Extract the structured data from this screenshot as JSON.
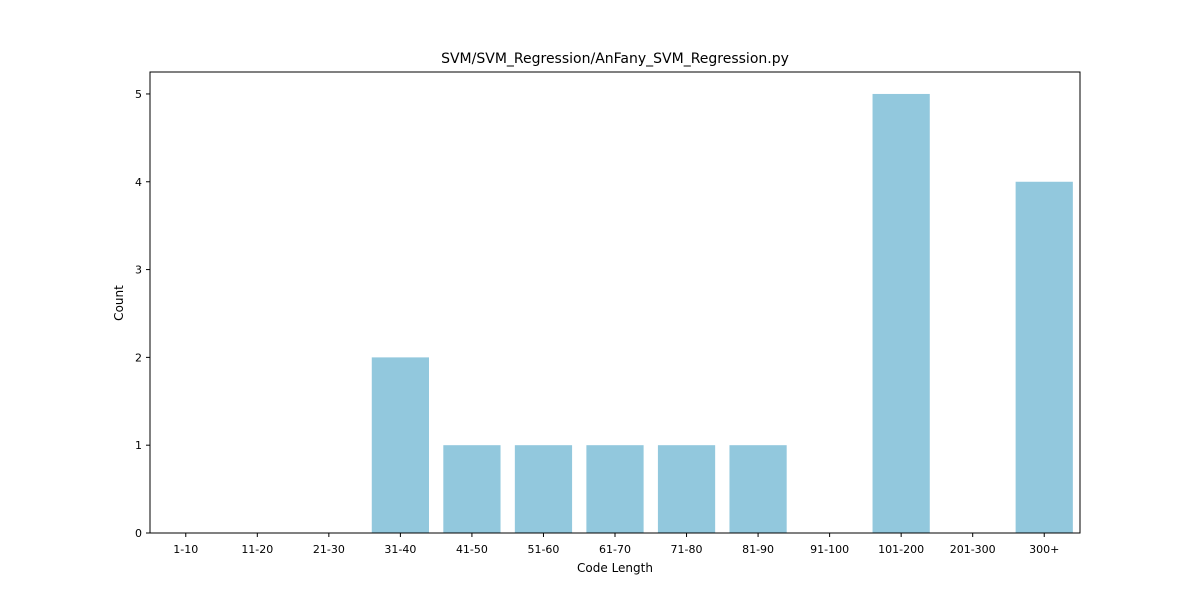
{
  "chart_data": {
    "type": "bar",
    "title": "SVM/SVM_Regression/AnFany_SVM_Regression.py",
    "xlabel": "Code Length",
    "ylabel": "Count",
    "categories": [
      "1-10",
      "11-20",
      "21-30",
      "31-40",
      "41-50",
      "51-60",
      "61-70",
      "71-80",
      "81-90",
      "91-100",
      "101-200",
      "201-300",
      "300+"
    ],
    "values": [
      0,
      0,
      0,
      2,
      1,
      1,
      1,
      1,
      1,
      0,
      5,
      0,
      4
    ],
    "yticks": [
      0,
      1,
      2,
      3,
      4,
      5
    ],
    "ylim": [
      0,
      5.25
    ],
    "bar_color": "#92c8dd",
    "grid": false,
    "legend": "none"
  }
}
